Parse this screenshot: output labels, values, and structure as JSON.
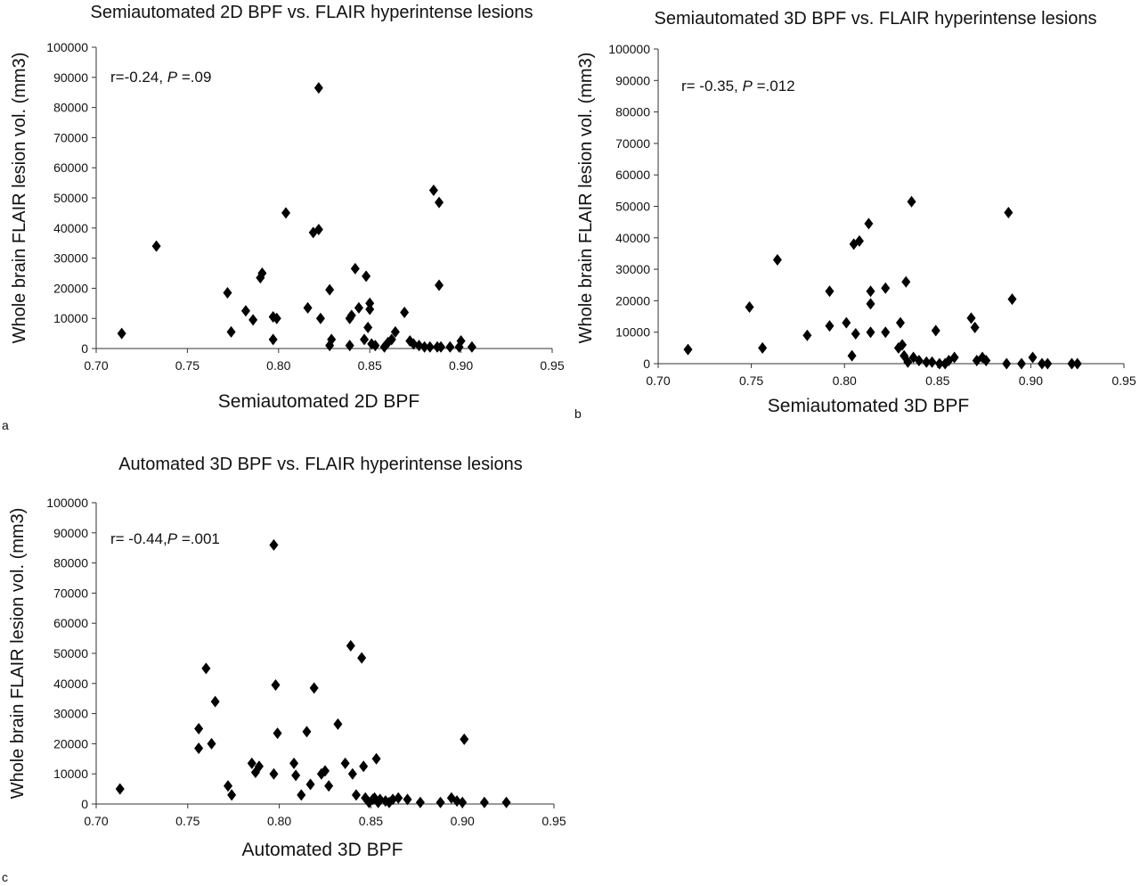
{
  "chart_data": [
    {
      "type": "scatter",
      "panel_label": "a",
      "title": "Semiautomated 2D BPF vs. FLAIR hyperintense lesions",
      "xlabel": "Semiautomated 2D BPF",
      "ylabel": "Whole brain FLAIR lesion vol. (mm3)",
      "annotation": {
        "prefix": "r=-0.24, ",
        "p_label": "P",
        "suffix": " =.09"
      },
      "xlim": [
        0.7,
        0.95
      ],
      "ylim": [
        0,
        100000
      ],
      "xticks": [
        "0.70",
        "0.75",
        "0.80",
        "0.85",
        "0.90",
        "0.95"
      ],
      "yticks": [
        "0",
        "10000",
        "20000",
        "30000",
        "40000",
        "50000",
        "60000",
        "70000",
        "80000",
        "90000",
        "100000"
      ],
      "grid": false,
      "marker": "diamond",
      "points": [
        [
          0.714,
          5000
        ],
        [
          0.733,
          34000
        ],
        [
          0.772,
          18500
        ],
        [
          0.774,
          5500
        ],
        [
          0.782,
          12500
        ],
        [
          0.786,
          9500
        ],
        [
          0.79,
          23500
        ],
        [
          0.791,
          25000
        ],
        [
          0.797,
          3000
        ],
        [
          0.797,
          10500
        ],
        [
          0.799,
          10000
        ],
        [
          0.804,
          45000
        ],
        [
          0.816,
          13500
        ],
        [
          0.819,
          38500
        ],
        [
          0.822,
          39500
        ],
        [
          0.822,
          86500
        ],
        [
          0.823,
          10000
        ],
        [
          0.828,
          19500
        ],
        [
          0.828,
          1000
        ],
        [
          0.829,
          3000
        ],
        [
          0.839,
          1000
        ],
        [
          0.839,
          10000
        ],
        [
          0.84,
          11000
        ],
        [
          0.842,
          26500
        ],
        [
          0.844,
          13500
        ],
        [
          0.847,
          3000
        ],
        [
          0.848,
          24000
        ],
        [
          0.849,
          7000
        ],
        [
          0.85,
          13000
        ],
        [
          0.85,
          15000
        ],
        [
          0.851,
          1500
        ],
        [
          0.853,
          1000
        ],
        [
          0.858,
          500
        ],
        [
          0.86,
          2000
        ],
        [
          0.862,
          3000
        ],
        [
          0.864,
          5500
        ],
        [
          0.869,
          12000
        ],
        [
          0.872,
          2500
        ],
        [
          0.874,
          1500
        ],
        [
          0.877,
          1000
        ],
        [
          0.88,
          500
        ],
        [
          0.883,
          500
        ],
        [
          0.885,
          52500
        ],
        [
          0.887,
          500
        ],
        [
          0.888,
          21000
        ],
        [
          0.888,
          48500
        ],
        [
          0.889,
          500
        ],
        [
          0.894,
          500
        ],
        [
          0.899,
          500
        ],
        [
          0.9,
          2500
        ],
        [
          0.906,
          500
        ]
      ]
    },
    {
      "type": "scatter",
      "panel_label": "b",
      "title": "Semiautomated 3D BPF vs. FLAIR hyperintense lesions",
      "xlabel": "Semiautomated 3D BPF",
      "ylabel": "Whole brain FLAIR lesion vol. (mm3)",
      "annotation": {
        "prefix": "r= -0.35, ",
        "p_label": "P",
        "suffix": " =.012"
      },
      "xlim": [
        0.7,
        0.95
      ],
      "ylim": [
        0,
        100000
      ],
      "xticks": [
        "0.70",
        "0.75",
        "0.80",
        "0.85",
        "0.90",
        "0.95"
      ],
      "yticks": [
        "0",
        "10000",
        "20000",
        "30000",
        "40000",
        "50000",
        "60000",
        "70000",
        "80000",
        "90000",
        "100000"
      ],
      "grid": false,
      "marker": "diamond",
      "points": [
        [
          0.716,
          4500
        ],
        [
          0.749,
          18000
        ],
        [
          0.756,
          5000
        ],
        [
          0.764,
          33000
        ],
        [
          0.78,
          9000
        ],
        [
          0.792,
          12000
        ],
        [
          0.792,
          23000
        ],
        [
          0.801,
          13000
        ],
        [
          0.804,
          2500
        ],
        [
          0.805,
          38000
        ],
        [
          0.806,
          9500
        ],
        [
          0.808,
          39000
        ],
        [
          0.813,
          44500
        ],
        [
          0.814,
          19000
        ],
        [
          0.814,
          23000
        ],
        [
          0.814,
          10000
        ],
        [
          0.822,
          24000
        ],
        [
          0.822,
          10000
        ],
        [
          0.829,
          5000
        ],
        [
          0.83,
          13000
        ],
        [
          0.831,
          6000
        ],
        [
          0.832,
          2500
        ],
        [
          0.833,
          26000
        ],
        [
          0.834,
          500
        ],
        [
          0.836,
          51500
        ],
        [
          0.837,
          2000
        ],
        [
          0.84,
          1000
        ],
        [
          0.844,
          500
        ],
        [
          0.847,
          500
        ],
        [
          0.849,
          10500
        ],
        [
          0.851,
          0
        ],
        [
          0.854,
          0
        ],
        [
          0.856,
          1000
        ],
        [
          0.859,
          2000
        ],
        [
          0.868,
          14500
        ],
        [
          0.87,
          11500
        ],
        [
          0.871,
          1000
        ],
        [
          0.874,
          2000
        ],
        [
          0.876,
          1000
        ],
        [
          0.887,
          0
        ],
        [
          0.888,
          48000
        ],
        [
          0.89,
          20500
        ],
        [
          0.895,
          0
        ],
        [
          0.901,
          2000
        ],
        [
          0.906,
          0
        ],
        [
          0.909,
          0
        ],
        [
          0.922,
          0
        ],
        [
          0.925,
          0
        ]
      ]
    },
    {
      "type": "scatter",
      "panel_label": "c",
      "title": "Automated 3D BPF vs. FLAIR hyperintense lesions",
      "xlabel": "Automated 3D BPF",
      "ylabel": "Whole brain FLAIR lesion vol. (mm3)",
      "annotation": {
        "prefix": "r= -0.44,",
        "p_label": "P",
        "suffix": " =.001"
      },
      "xlim": [
        0.7,
        0.95
      ],
      "ylim": [
        0,
        100000
      ],
      "xticks": [
        "0.70",
        "0.75",
        "0.80",
        "0.85",
        "0.90",
        "0.95"
      ],
      "yticks": [
        "0",
        "10000",
        "20000",
        "30000",
        "40000",
        "50000",
        "60000",
        "70000",
        "80000",
        "90000",
        "100000"
      ],
      "grid": false,
      "marker": "diamond",
      "points": [
        [
          0.713,
          5000
        ],
        [
          0.756,
          18500
        ],
        [
          0.756,
          25000
        ],
        [
          0.76,
          45000
        ],
        [
          0.763,
          20000
        ],
        [
          0.765,
          34000
        ],
        [
          0.772,
          6000
        ],
        [
          0.774,
          3000
        ],
        [
          0.785,
          13500
        ],
        [
          0.787,
          10500
        ],
        [
          0.789,
          12500
        ],
        [
          0.797,
          10000
        ],
        [
          0.797,
          86000
        ],
        [
          0.798,
          39500
        ],
        [
          0.799,
          23500
        ],
        [
          0.808,
          13500
        ],
        [
          0.809,
          9500
        ],
        [
          0.812,
          3000
        ],
        [
          0.815,
          24000
        ],
        [
          0.817,
          6500
        ],
        [
          0.819,
          38500
        ],
        [
          0.823,
          10000
        ],
        [
          0.825,
          11000
        ],
        [
          0.827,
          6000
        ],
        [
          0.832,
          26500
        ],
        [
          0.836,
          13500
        ],
        [
          0.839,
          52500
        ],
        [
          0.84,
          10000
        ],
        [
          0.842,
          3000
        ],
        [
          0.845,
          48500
        ],
        [
          0.846,
          12500
        ],
        [
          0.847,
          2000
        ],
        [
          0.849,
          500
        ],
        [
          0.851,
          1500
        ],
        [
          0.852,
          2000
        ],
        [
          0.853,
          15000
        ],
        [
          0.854,
          500
        ],
        [
          0.855,
          1500
        ],
        [
          0.858,
          1000
        ],
        [
          0.86,
          500
        ],
        [
          0.862,
          1500
        ],
        [
          0.865,
          2000
        ],
        [
          0.87,
          1500
        ],
        [
          0.877,
          500
        ],
        [
          0.888,
          500
        ],
        [
          0.894,
          2000
        ],
        [
          0.897,
          1000
        ],
        [
          0.9,
          500
        ],
        [
          0.901,
          21500
        ],
        [
          0.912,
          500
        ],
        [
          0.924,
          500
        ]
      ]
    }
  ]
}
